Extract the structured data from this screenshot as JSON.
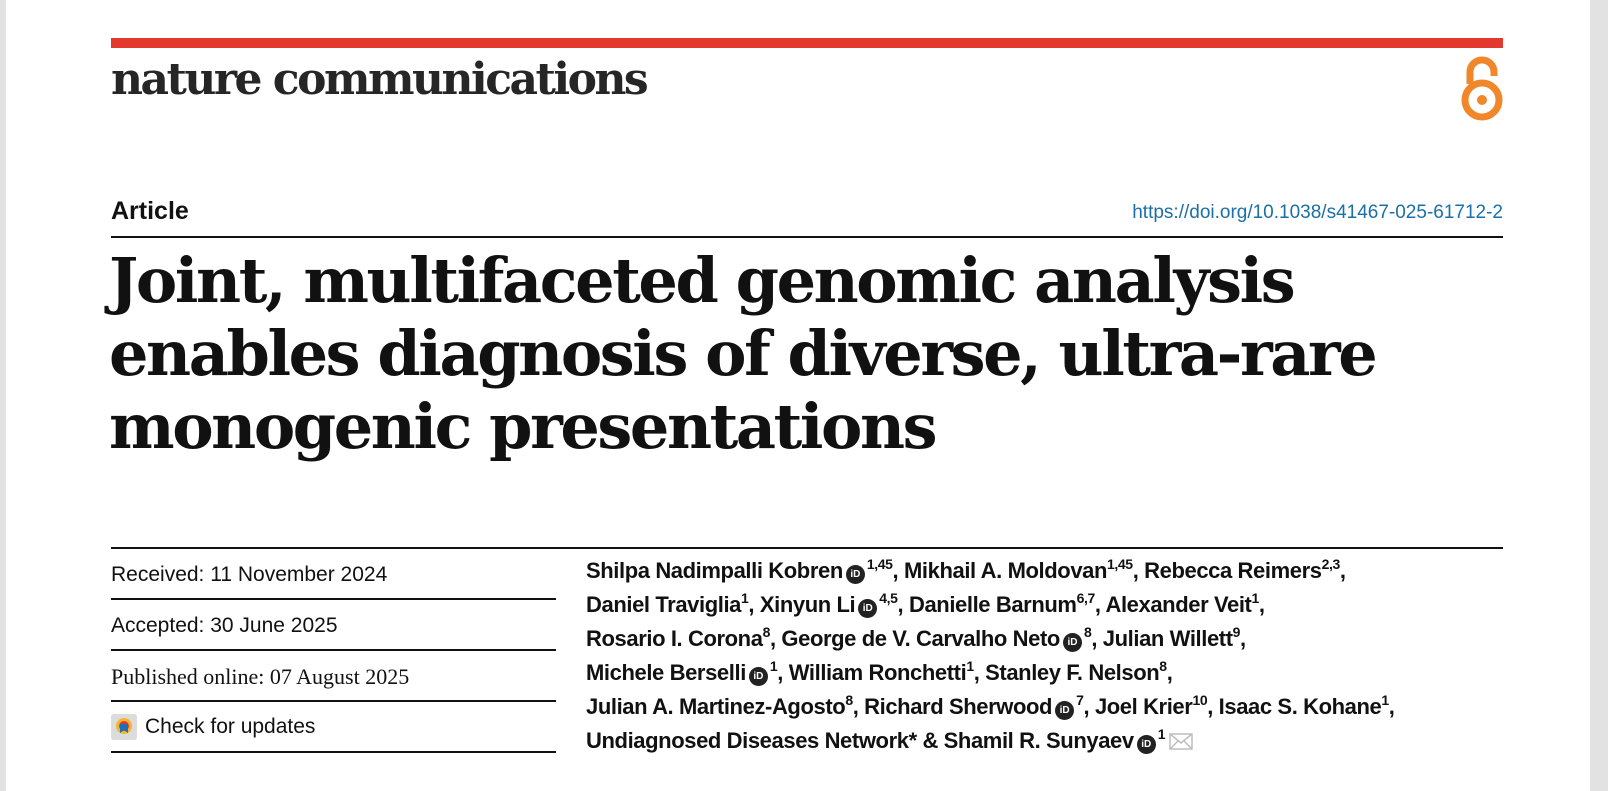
{
  "journal": {
    "name": "nature communications",
    "accent_color": "#e2382e",
    "open_access_icon": "open-access-icon",
    "open_access_color": "#f0872a"
  },
  "article": {
    "type": "Article",
    "doi": "https://doi.org/10.1038/s41467-025-61712-2",
    "title": "Joint, multifaceted genomic analysis enables diagnosis of diverse, ultra-rare monogenic presentations"
  },
  "dates": {
    "received": "Received: 11 November 2024",
    "accepted": "Accepted: 30 June 2025",
    "published": "Published online: 07 August 2025",
    "check_updates": "Check for updates"
  },
  "authors": [
    {
      "name": "Shilpa Nadimpalli Kobren",
      "orcid": true,
      "aff": "1,45",
      "sep": ", "
    },
    {
      "name": "Mikhail A. Moldovan",
      "orcid": false,
      "aff": "1,45",
      "sep": ", "
    },
    {
      "name": "Rebecca Reimers",
      "orcid": false,
      "aff": "2,3",
      "sep": ", "
    },
    {
      "name": "Daniel Traviglia",
      "orcid": false,
      "aff": "1",
      "sep": ", "
    },
    {
      "name": "Xinyun Li",
      "orcid": true,
      "aff": "4,5",
      "sep": ", "
    },
    {
      "name": "Danielle Barnum",
      "orcid": false,
      "aff": "6,7",
      "sep": ", "
    },
    {
      "name": "Alexander Veit",
      "orcid": false,
      "aff": "1",
      "sep": ", "
    },
    {
      "name": "Rosario I. Corona",
      "orcid": false,
      "aff": "8",
      "sep": ", "
    },
    {
      "name": "George de V. Carvalho Neto",
      "orcid": true,
      "aff": "8",
      "sep": ", "
    },
    {
      "name": "Julian Willett",
      "orcid": false,
      "aff": "9",
      "sep": ", "
    },
    {
      "name": "Michele Berselli",
      "orcid": true,
      "aff": "1",
      "sep": ", "
    },
    {
      "name": "William Ronchetti",
      "orcid": false,
      "aff": "1",
      "sep": ", "
    },
    {
      "name": "Stanley F. Nelson",
      "orcid": false,
      "aff": "8",
      "sep": ", "
    },
    {
      "name": "Julian A. Martinez-Agosto",
      "orcid": false,
      "aff": "8",
      "sep": ", "
    },
    {
      "name": "Richard Sherwood",
      "orcid": true,
      "aff": "7",
      "sep": ", "
    },
    {
      "name": "Joel Krier",
      "orcid": false,
      "aff": "10",
      "sep": ", "
    },
    {
      "name": "Isaac S. Kohane",
      "orcid": false,
      "aff": "1",
      "sep": ", "
    },
    {
      "name": "Undiagnosed Diseases Network*",
      "orcid": false,
      "aff": "",
      "sep": " & "
    },
    {
      "name": "Shamil R. Sunyaev",
      "orcid": true,
      "aff": "1",
      "sep": "",
      "mail": true
    }
  ],
  "orcid_icon_label": "iD",
  "line_breaks_after": [
    2,
    6,
    9,
    12,
    16
  ]
}
